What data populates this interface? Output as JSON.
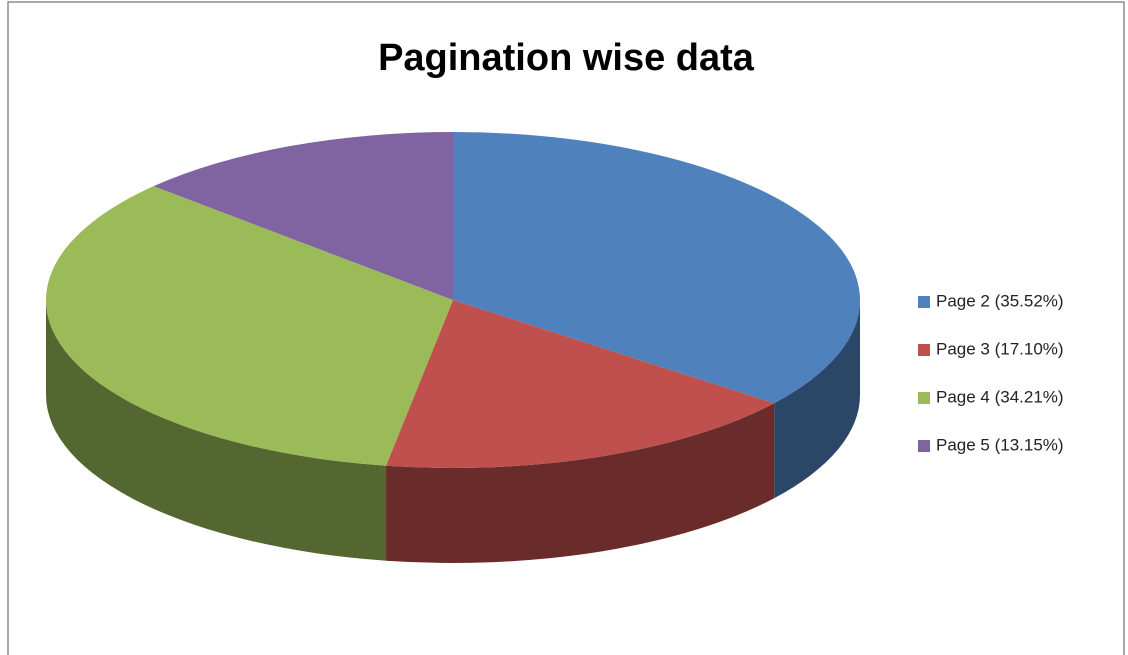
{
  "chart_data": {
    "type": "pie",
    "title": "Pagination wise data",
    "categories": [
      "Page 2 (35.52%)",
      "Page 3 (17.10%)",
      "Page 4 (34.21%)",
      "Page 5 (13.15%)"
    ],
    "values": [
      35.52,
      17.1,
      34.21,
      13.15
    ],
    "colors": [
      "#4f81bd",
      "#c0504d",
      "#9bbb59",
      "#8064a2"
    ],
    "legend": "right"
  }
}
